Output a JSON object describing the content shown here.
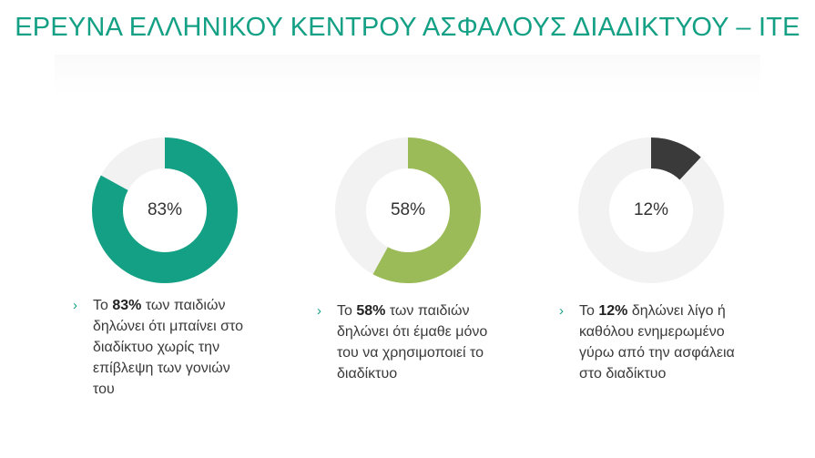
{
  "title": "ΕΡΕΥΝΑ ΕΛΛΗΝΙΚΟΥ ΚΕΝΤΡΟΥ ΑΣΦΑΛΟΥΣ ΔΙΑΔΙΚΤΥΟΥ – ΙΤΕ",
  "chart_data": [
    {
      "type": "pie",
      "categories": [
        "value",
        "rest"
      ],
      "values": [
        83,
        17
      ],
      "label": "83%",
      "colors": [
        "#14a085",
        "#f2f2f2"
      ],
      "caption": {
        "highlight": "83%",
        "prefix": "Το ",
        "text": " των παιδιών δηλώνει ότι μπαίνει στο διαδίκτυο χωρίς την επίβλεψη των γονιών του"
      }
    },
    {
      "type": "pie",
      "categories": [
        "value",
        "rest"
      ],
      "values": [
        58,
        42
      ],
      "label": "58%",
      "colors": [
        "#9bbb59",
        "#f2f2f2"
      ],
      "caption": {
        "highlight": "58%",
        "prefix": "Το ",
        "text": " των παιδιών δηλώνει ότι έμαθε μόνο του να χρησιμοποιεί το διαδίκτυο"
      }
    },
    {
      "type": "pie",
      "categories": [
        "value",
        "rest"
      ],
      "values": [
        12,
        88
      ],
      "label": "12%",
      "colors": [
        "#3a3a3a",
        "#f2f2f2"
      ],
      "caption": {
        "highlight": "12%",
        "prefix": "Το ",
        "text": " δηλώνει λίγο ή καθόλου ενημερωμένο γύρω από την ασφάλεια στο διαδίκτυο"
      }
    }
  ],
  "icons": {
    "bullet": "chevron-right-icon"
  }
}
